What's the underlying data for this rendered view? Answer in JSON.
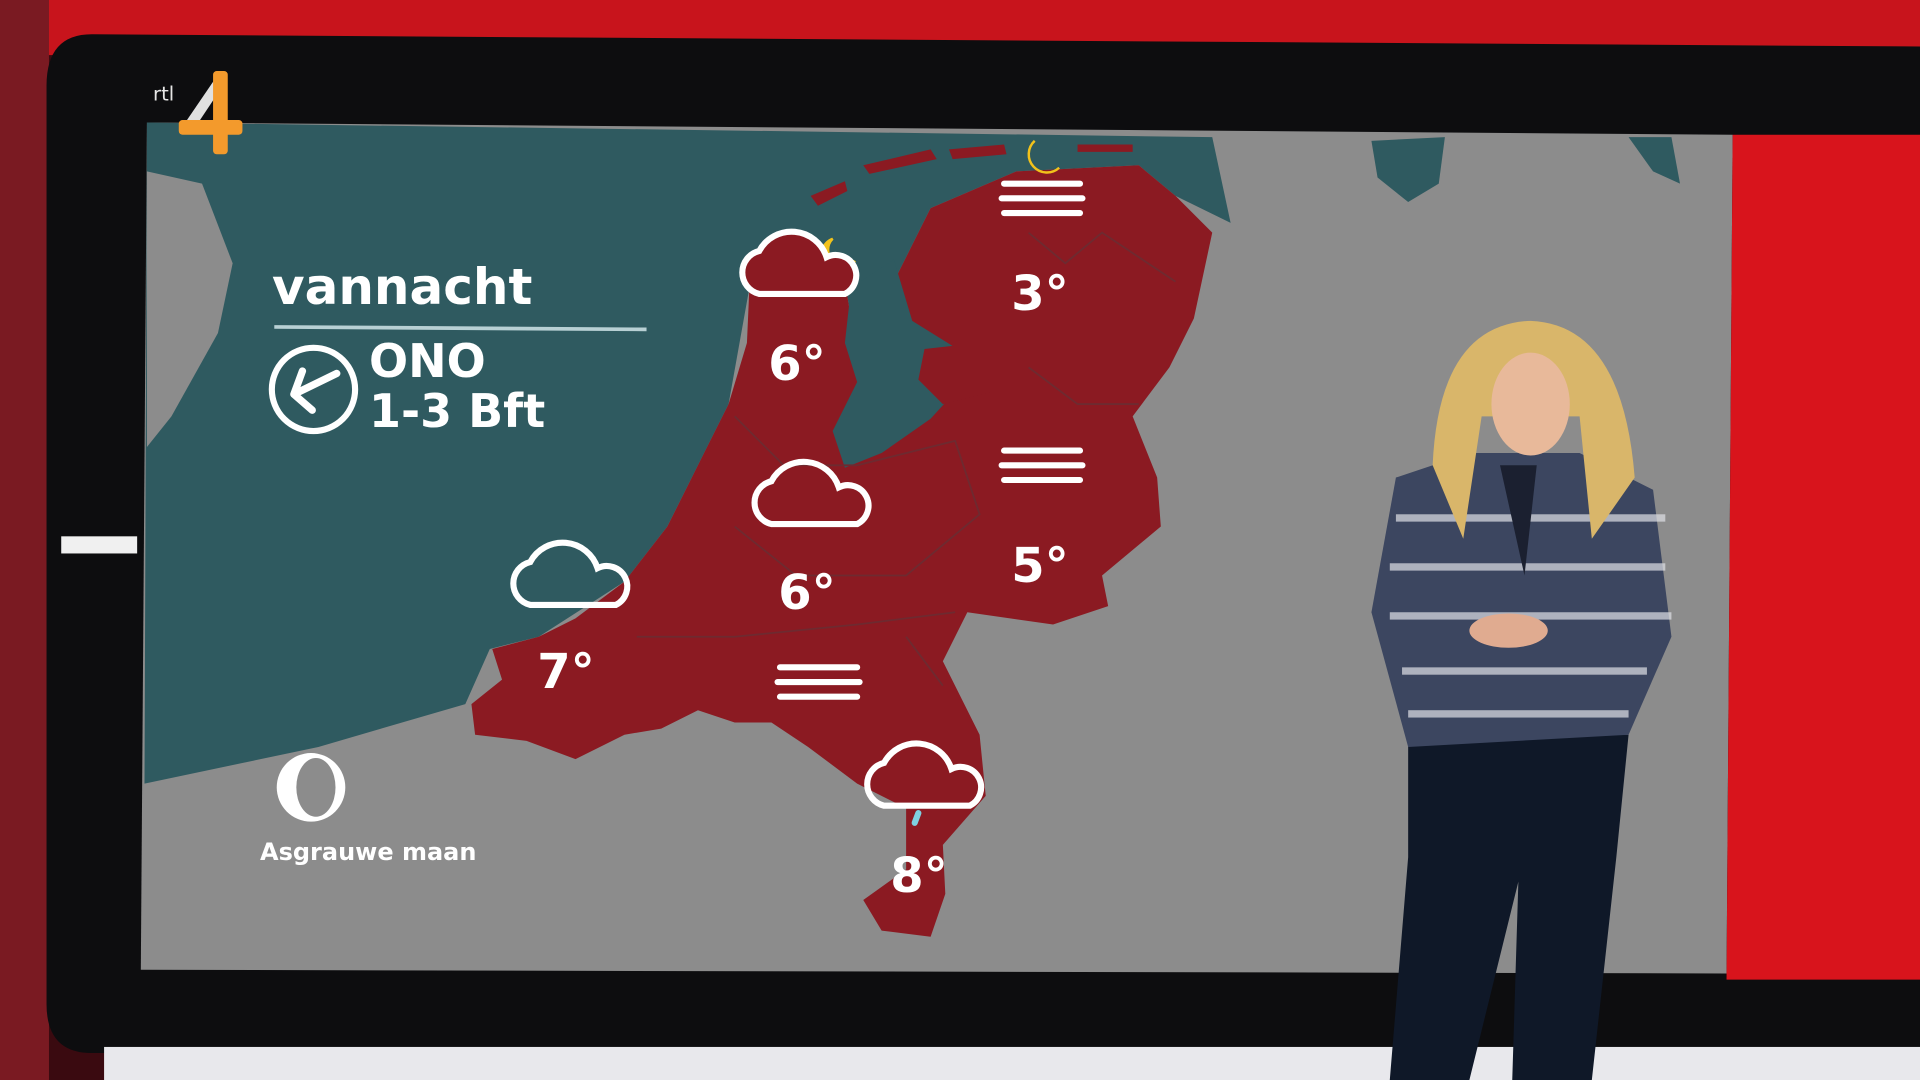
{
  "channel_logo": {
    "text": "rtl 4",
    "colors": {
      "rtl": "#e6e6e6",
      "digit": "#f39a2c"
    }
  },
  "panel": {
    "title": "vannacht",
    "wind_direction": "ONO",
    "wind_speed": "1-3 Bft",
    "wind_icon": "arrow-left-circle-icon",
    "moon_phase_icon": "waning-crescent-moon-icon",
    "moon_phase_label": "Asgrauwe maan"
  },
  "colors": {
    "sea": "#2f5a60",
    "land": "#8c8c8c",
    "netherlands": "#8b1a22",
    "studio_red": "#d8141c",
    "moon": "#f2c21b"
  },
  "forecast": [
    {
      "region": "noord-holland",
      "icon": "cloud-moon-icon",
      "temp": "6°"
    },
    {
      "region": "groningen",
      "icon": "fog-moon-icon",
      "temp": "3°"
    },
    {
      "region": "utrecht",
      "icon": "cloud-icon",
      "temp": "6°"
    },
    {
      "region": "overijssel",
      "icon": "fog-icon",
      "temp": "5°"
    },
    {
      "region": "zeeland",
      "icon": "cloud-icon",
      "temp": "7°"
    },
    {
      "region": "brabant",
      "icon": "fog-icon",
      "temp": ""
    },
    {
      "region": "limburg",
      "icon": "cloud-drizzle-icon",
      "temp": "8°"
    }
  ]
}
